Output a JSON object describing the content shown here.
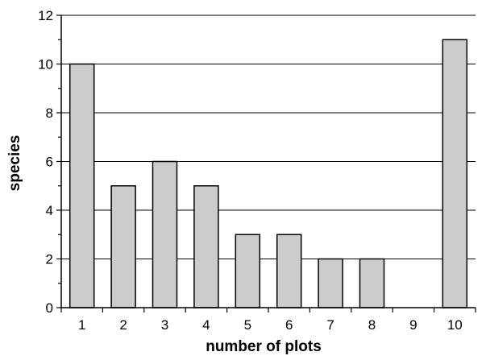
{
  "chart_data": {
    "type": "bar",
    "categories": [
      "1",
      "2",
      "3",
      "4",
      "5",
      "6",
      "7",
      "8",
      "9",
      "10"
    ],
    "values": [
      10,
      5,
      6,
      5,
      3,
      3,
      2,
      2,
      0,
      11
    ],
    "xlabel": "number of plots",
    "ylabel": "species",
    "ylim": [
      0,
      12
    ],
    "yticks": [
      0,
      2,
      4,
      6,
      8,
      10,
      12
    ],
    "grid": true,
    "bar_color": "#cccccc",
    "bar_edge_color": "#000000"
  }
}
